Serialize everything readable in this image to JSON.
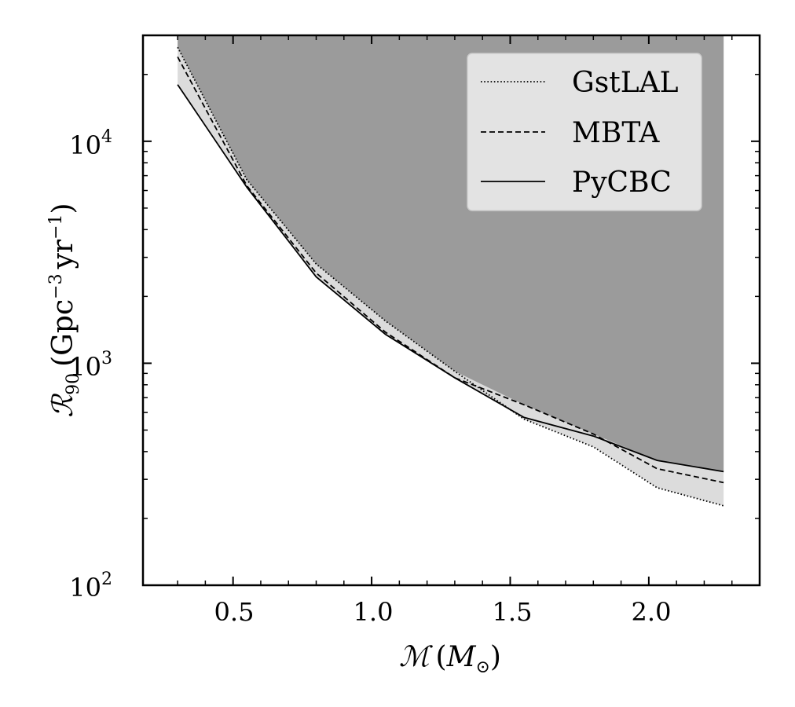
{
  "chart_data": {
    "type": "line",
    "xscale": "linear",
    "yscale": "log",
    "xlim": [
      0.175,
      2.4
    ],
    "ylim": [
      100,
      30000
    ],
    "xticks": [
      0.5,
      1.0,
      1.5,
      2.0
    ],
    "xtick_labels": [
      "0.5",
      "1.0",
      "1.5",
      "2.0"
    ],
    "yticks": [
      {
        "value": 100,
        "base": "10",
        "exp": "2"
      },
      {
        "value": 1000,
        "base": "10",
        "exp": "3"
      },
      {
        "value": 10000,
        "base": "10",
        "exp": "4"
      }
    ],
    "xlabel": {
      "main": "ℳ",
      "paren_open": "(",
      "unit": "M",
      "unit_sub": "⊙",
      "paren_close": ")"
    },
    "ylabel": {
      "main": "ℛ",
      "sub": "90",
      "paren_open": "(",
      "unit1": "Gpc",
      "exp1": "−3",
      "unit2": "yr",
      "exp2": "−1",
      "paren_close": ")"
    },
    "legend": {
      "position": "top-right"
    },
    "series": [
      {
        "name": "GstLAL",
        "style": "dotted",
        "x": [
          0.3,
          0.55,
          0.8,
          1.05,
          1.3,
          1.55,
          1.8,
          2.03,
          2.27
        ],
        "values": [
          26500,
          6700,
          2800,
          1550,
          920,
          560,
          420,
          275,
          228
        ]
      },
      {
        "name": "MBTA",
        "style": "dashed",
        "x": [
          0.3,
          0.55,
          0.8,
          1.05,
          1.3,
          1.55,
          1.8,
          2.03,
          2.27
        ],
        "values": [
          24000,
          6300,
          2550,
          1380,
          860,
          650,
          480,
          335,
          290
        ]
      },
      {
        "name": "PyCBC",
        "style": "solid",
        "x": [
          0.3,
          0.55,
          0.8,
          1.05,
          1.3,
          1.55,
          1.8,
          2.03,
          2.27
        ],
        "values": [
          18000,
          6200,
          2450,
          1350,
          860,
          570,
          470,
          365,
          325
        ]
      }
    ],
    "shading": {
      "dark_color": "#9b9b9b",
      "light_color": "#dcdcdc"
    }
  }
}
